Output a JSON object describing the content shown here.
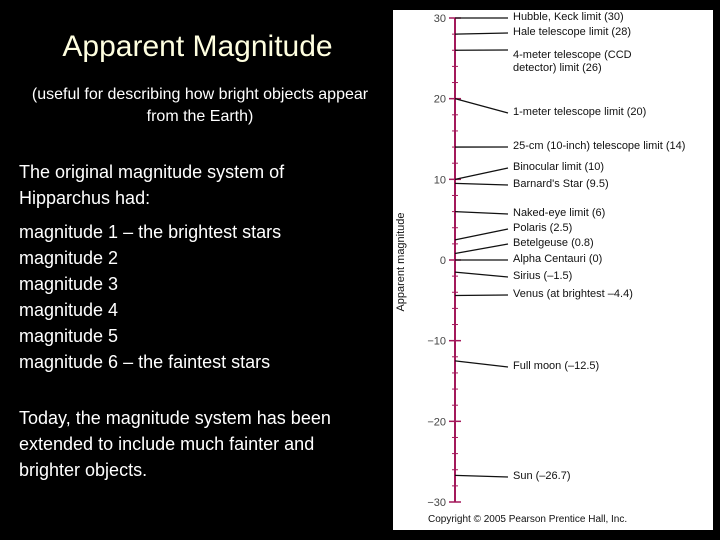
{
  "slide": {
    "title": "Apparent Magnitude",
    "subtitle": "(useful for describing how bright objects appear from the Earth)",
    "intro": "The original magnitude system of Hipparchus had:",
    "scale_lines": [
      "magnitude 1 – the brightest stars",
      "magnitude 2",
      "magnitude 3",
      "magnitude 4",
      "magnitude 5",
      "magnitude 6 – the faintest stars"
    ],
    "closing": "Today, the magnitude system has been extended to include much fainter and brighter objects."
  },
  "figure": {
    "axis_label": "Apparent magnitude",
    "ylim": [
      -30,
      30
    ],
    "yticks": [
      30,
      20,
      10,
      0,
      {
        "value": -10,
        "label": "−10"
      },
      {
        "value": -20,
        "label": "−20"
      },
      {
        "value": -30,
        "label": "−30"
      }
    ],
    "markers": [
      {
        "label": "Hubble, Keck limit (30)",
        "value": 30
      },
      {
        "label": "Hale telescope limit (28)",
        "value": 28
      },
      {
        "label": "4-meter telescope (CCD detector) limit (26)",
        "value": 26
      },
      {
        "label": "1-meter telescope limit (20)",
        "value": 20
      },
      {
        "label": "25-cm (10-inch) telescope limit (14)",
        "value": 14
      },
      {
        "label": "Binocular limit (10)",
        "value": 10
      },
      {
        "label": "Barnard's Star (9.5)",
        "value": 9.5
      },
      {
        "label": "Naked-eye limit (6)",
        "value": 6
      },
      {
        "label": "Polaris (2.5)",
        "value": 2.5
      },
      {
        "label": "Betelgeuse (0.8)",
        "value": 0.8
      },
      {
        "label": "Alpha Centauri (0)",
        "value": 0
      },
      {
        "label": "Sirius (–1.5)",
        "value": -1.5
      },
      {
        "label": "Venus (at brightest –4.4)",
        "value": -4.4
      },
      {
        "label": "Full moon (–12.5)",
        "value": -12.5
      },
      {
        "label": "Sun (–26.7)",
        "value": -26.7
      }
    ],
    "copyright": "Copyright © 2005 Pearson Prentice Hall, Inc."
  }
}
